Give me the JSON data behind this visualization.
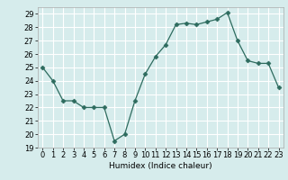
{
  "x": [
    0,
    1,
    2,
    3,
    4,
    5,
    6,
    7,
    8,
    9,
    10,
    11,
    12,
    13,
    14,
    15,
    16,
    17,
    18,
    19,
    20,
    21,
    22,
    23
  ],
  "y": [
    25,
    24,
    22.5,
    22.5,
    22,
    22,
    22,
    19.5,
    20,
    22.5,
    24.5,
    25.8,
    26.7,
    28.2,
    28.3,
    28.2,
    28.4,
    28.6,
    29.1,
    27,
    25.5,
    25.3,
    25.3,
    23.5
  ],
  "line_color": "#2d6b5e",
  "marker": "D",
  "marker_size": 2.5,
  "xlabel": "Humidex (Indice chaleur)",
  "xlim": [
    -0.5,
    23.5
  ],
  "ylim": [
    19,
    29.5
  ],
  "yticks": [
    19,
    20,
    21,
    22,
    23,
    24,
    25,
    26,
    27,
    28,
    29
  ],
  "xticks": [
    0,
    1,
    2,
    3,
    4,
    5,
    6,
    7,
    8,
    9,
    10,
    11,
    12,
    13,
    14,
    15,
    16,
    17,
    18,
    19,
    20,
    21,
    22,
    23
  ],
  "bg_color": "#d6ecec",
  "grid_color": "#ffffff",
  "label_fontsize": 6.5,
  "tick_fontsize": 6
}
